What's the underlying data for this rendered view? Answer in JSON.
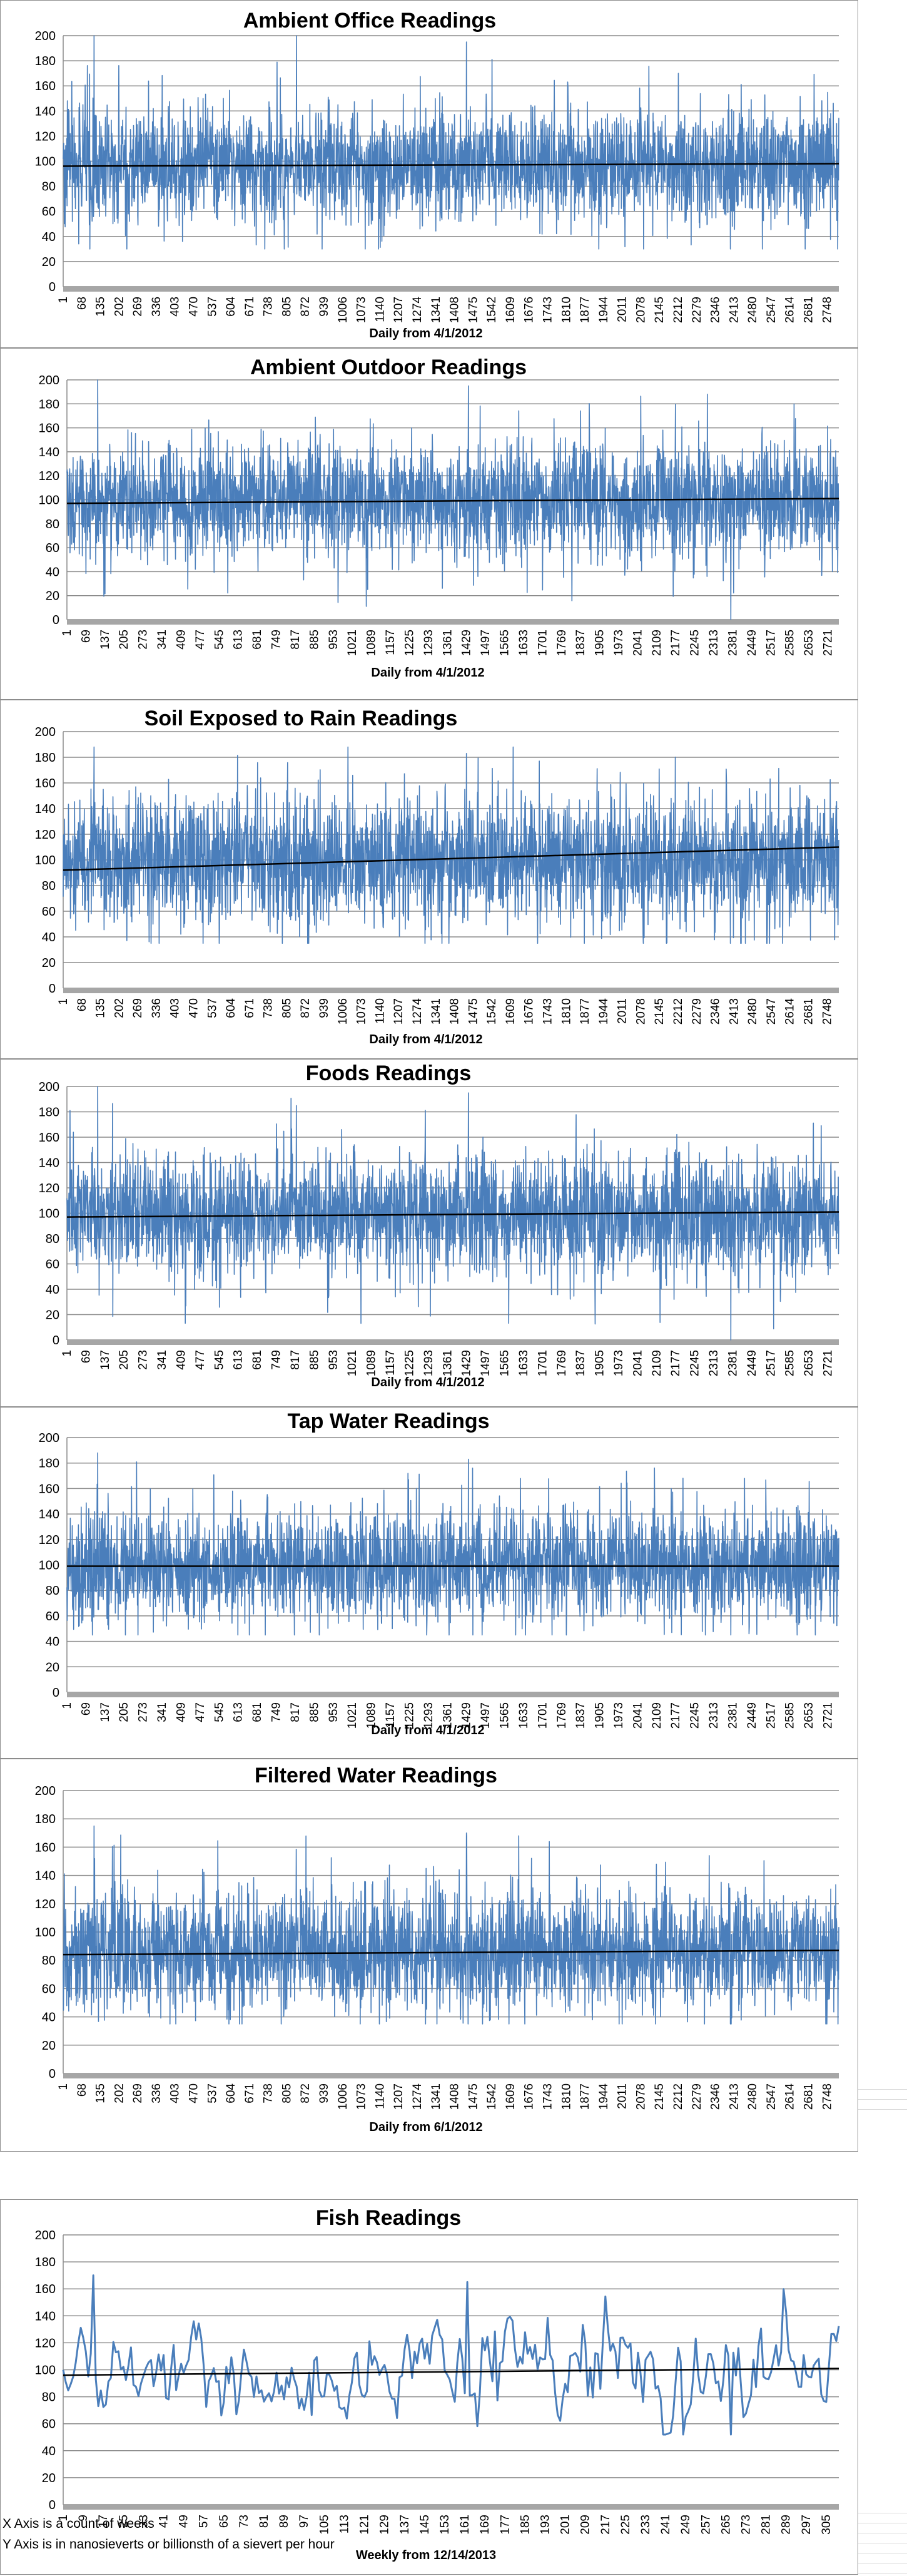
{
  "chart_data": [
    {
      "type": "line",
      "title": "Ambient Office Readings",
      "xlabel": "Daily from 4/1/2012",
      "ylim": [
        0,
        200
      ],
      "yticks": [
        0,
        20,
        40,
        60,
        80,
        100,
        120,
        140,
        160,
        180,
        200
      ],
      "xticks": [
        "1",
        "68",
        "135",
        "202",
        "269",
        "336",
        "403",
        "470",
        "537",
        "604",
        "671",
        "738",
        "805",
        "872",
        "939",
        "1006",
        "1073",
        "1140",
        "1207",
        "1274",
        "1341",
        "1408",
        "1475",
        "1542",
        "1609",
        "1676",
        "1743",
        "1810",
        "1877",
        "1944",
        "2011",
        "2078",
        "2145",
        "2212",
        "2279",
        "2346",
        "2413",
        "2480",
        "2547",
        "2614",
        "2681",
        "2748"
      ],
      "n_points": 2790,
      "series": [
        {
          "mean": 97,
          "spread": 22,
          "min": 30,
          "max": 200
        }
      ],
      "trendline": [
        96,
        98
      ],
      "series_color": "#4a7ebb"
    },
    {
      "type": "line",
      "title": "Ambient Outdoor Readings",
      "xlabel": "Daily from 4/1/2012",
      "ylim": [
        0,
        200
      ],
      "yticks": [
        0,
        20,
        40,
        60,
        80,
        100,
        120,
        140,
        160,
        180,
        200
      ],
      "xticks": [
        "1",
        "69",
        "137",
        "205",
        "273",
        "341",
        "409",
        "477",
        "545",
        "613",
        "681",
        "749",
        "817",
        "885",
        "953",
        "1021",
        "1089",
        "1157",
        "1225",
        "1293",
        "1361",
        "1429",
        "1497",
        "1565",
        "1633",
        "1701",
        "1769",
        "1837",
        "1905",
        "1973",
        "2041",
        "2109",
        "2177",
        "2245",
        "2313",
        "2381",
        "2449",
        "2517",
        "2585",
        "2653",
        "2721"
      ],
      "n_points": 2760,
      "series": [
        {
          "mean": 99,
          "spread": 24,
          "min": 0,
          "max": 200
        }
      ],
      "trendline": [
        97,
        101
      ],
      "series_color": "#4a7ebb"
    },
    {
      "type": "line",
      "title": "Soil Exposed to Rain Readings",
      "xlabel": "Daily from 4/1/2012",
      "ylim": [
        0,
        200
      ],
      "yticks": [
        0,
        20,
        40,
        60,
        80,
        100,
        120,
        140,
        160,
        180,
        200
      ],
      "xticks": [
        "1",
        "68",
        "135",
        "202",
        "269",
        "336",
        "403",
        "470",
        "537",
        "604",
        "671",
        "738",
        "805",
        "872",
        "939",
        "1006",
        "1073",
        "1140",
        "1207",
        "1274",
        "1341",
        "1408",
        "1475",
        "1542",
        "1609",
        "1676",
        "1743",
        "1810",
        "1877",
        "1944",
        "2011",
        "2078",
        "2145",
        "2212",
        "2279",
        "2346",
        "2413",
        "2480",
        "2547",
        "2614",
        "2681",
        "2748"
      ],
      "n_points": 2790,
      "series": [
        {
          "mean": 100,
          "spread": 25,
          "min": 35,
          "max": 188
        }
      ],
      "trendline": [
        92,
        110
      ],
      "series_color": "#4a7ebb"
    },
    {
      "type": "line",
      "title": "Foods Readings",
      "xlabel": "Daily from 4/1/2012",
      "ylim": [
        0,
        200
      ],
      "yticks": [
        0,
        20,
        40,
        60,
        80,
        100,
        120,
        140,
        160,
        180,
        200
      ],
      "xticks": [
        "1",
        "69",
        "137",
        "205",
        "273",
        "341",
        "409",
        "477",
        "545",
        "613",
        "681",
        "749",
        "817",
        "885",
        "953",
        "1021",
        "1089",
        "1157",
        "1225",
        "1293",
        "1361",
        "1429",
        "1497",
        "1565",
        "1633",
        "1701",
        "1769",
        "1837",
        "1905",
        "1973",
        "2041",
        "2109",
        "2177",
        "2245",
        "2313",
        "2381",
        "2449",
        "2517",
        "2585",
        "2653",
        "2721"
      ],
      "n_points": 2760,
      "series": [
        {
          "mean": 99,
          "spread": 24,
          "min": 0,
          "max": 200
        }
      ],
      "trendline": [
        97,
        101
      ],
      "series_color": "#4a7ebb"
    },
    {
      "type": "line",
      "title": "Tap Water Readings",
      "xlabel": "Daily from 4/1/2012",
      "ylim": [
        0,
        200
      ],
      "yticks": [
        0,
        20,
        40,
        60,
        80,
        100,
        120,
        140,
        160,
        180,
        200
      ],
      "xticks": [
        "1",
        "69",
        "137",
        "205",
        "273",
        "341",
        "409",
        "477",
        "545",
        "613",
        "681",
        "749",
        "817",
        "885",
        "953",
        "1021",
        "1089",
        "1157",
        "1225",
        "1293",
        "1361",
        "1429",
        "1497",
        "1565",
        "1633",
        "1701",
        "1769",
        "1837",
        "1905",
        "1973",
        "2041",
        "2109",
        "2177",
        "2245",
        "2313",
        "2381",
        "2449",
        "2517",
        "2585",
        "2653",
        "2721"
      ],
      "n_points": 2760,
      "series": [
        {
          "mean": 99,
          "spread": 22,
          "min": 45,
          "max": 188
        }
      ],
      "trendline": [
        99,
        99
      ],
      "series_color": "#4a7ebb"
    },
    {
      "type": "line",
      "title": "Filtered Water Readings",
      "xlabel": "Daily from 6/1/2012",
      "ylim": [
        0,
        200
      ],
      "yticks": [
        0,
        20,
        40,
        60,
        80,
        100,
        120,
        140,
        160,
        180,
        200
      ],
      "xticks": [
        "1",
        "68",
        "135",
        "202",
        "269",
        "336",
        "403",
        "470",
        "537",
        "604",
        "671",
        "738",
        "805",
        "872",
        "939",
        "1006",
        "1073",
        "1140",
        "1207",
        "1274",
        "1341",
        "1408",
        "1475",
        "1542",
        "1609",
        "1676",
        "1743",
        "1810",
        "1877",
        "1944",
        "2011",
        "2078",
        "2145",
        "2212",
        "2279",
        "2346",
        "2413",
        "2480",
        "2547",
        "2614",
        "2681",
        "2748"
      ],
      "n_points": 2790,
      "series": [
        {
          "mean": 86,
          "spread": 22,
          "min": 35,
          "max": 175
        }
      ],
      "trendline": [
        84,
        87
      ],
      "series_color": "#4a7ebb"
    },
    {
      "type": "line",
      "title": "Fish Readings",
      "xlabel": "Weekly from 12/14/2013",
      "ylim": [
        0,
        200
      ],
      "yticks": [
        0,
        20,
        40,
        60,
        80,
        100,
        120,
        140,
        160,
        180,
        200
      ],
      "xticks": [
        "1",
        "9",
        "17",
        "25",
        "33",
        "41",
        "49",
        "57",
        "65",
        "73",
        "81",
        "89",
        "97",
        "105",
        "113",
        "121",
        "129",
        "137",
        "145",
        "153",
        "161",
        "169",
        "177",
        "185",
        "193",
        "201",
        "209",
        "217",
        "225",
        "233",
        "241",
        "249",
        "257",
        "265",
        "273",
        "281",
        "289",
        "297",
        "305"
      ],
      "n_points": 310,
      "series": [
        {
          "mean": 98,
          "spread": 18,
          "min": 52,
          "max": 170
        }
      ],
      "trendline": [
        96,
        101
      ],
      "series_color": "#4a7ebb"
    }
  ],
  "notes": [
    "X Axis is a count of weeks",
    "Y Axis is in nanosieverts or billionsth of a sievert per hour"
  ]
}
